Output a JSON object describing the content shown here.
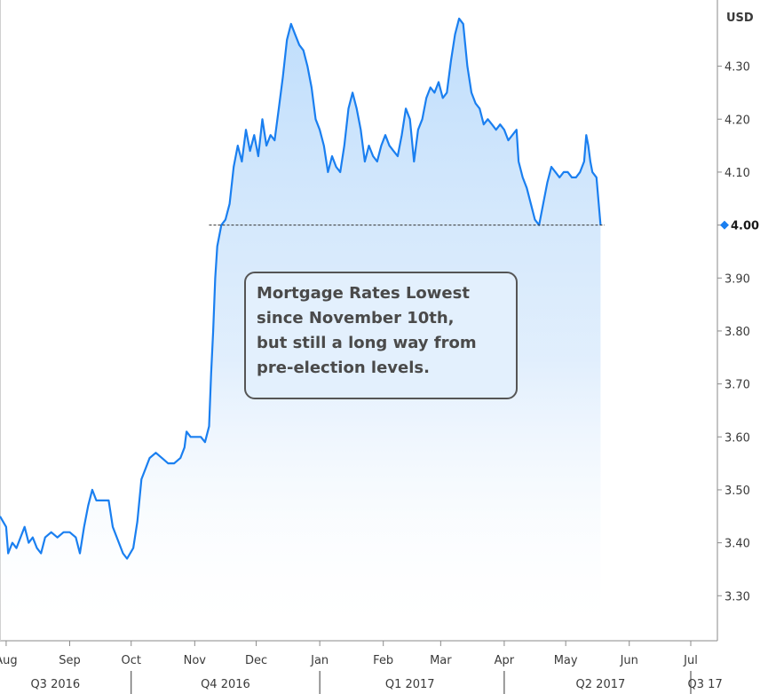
{
  "chart_data": {
    "type": "area",
    "unit": "USD",
    "yticks": [
      3.3,
      3.4,
      3.5,
      3.6,
      3.7,
      3.8,
      3.9,
      4.0,
      4.1,
      4.2,
      4.3
    ],
    "ytick_labels": [
      "3.30",
      "3.40",
      "3.50",
      "3.60",
      "3.70",
      "3.80",
      "3.90",
      "4.00",
      "4.10",
      "4.20",
      "4.30"
    ],
    "ylim": [
      3.215,
      4.425
    ],
    "xlim": [
      "2016-07-29",
      "2017-07-14"
    ],
    "month_ticks": [
      {
        "date": "2016-08-01",
        "label": "Aug"
      },
      {
        "date": "2016-09-01",
        "label": "Sep"
      },
      {
        "date": "2016-10-01",
        "label": "Oct"
      },
      {
        "date": "2016-11-01",
        "label": "Nov"
      },
      {
        "date": "2016-12-01",
        "label": "Dec"
      },
      {
        "date": "2017-01-01",
        "label": "Jan"
      },
      {
        "date": "2017-02-01",
        "label": "Feb"
      },
      {
        "date": "2017-03-01",
        "label": "Mar"
      },
      {
        "date": "2017-04-01",
        "label": "Apr"
      },
      {
        "date": "2017-05-01",
        "label": "May"
      },
      {
        "date": "2017-06-01",
        "label": "Jun"
      },
      {
        "date": "2017-07-01",
        "label": "Jul"
      }
    ],
    "quarters": [
      {
        "label": "Q3 2016",
        "label_date": "2016-08-25",
        "separator_date": "2016-10-01"
      },
      {
        "label": "Q4 2016",
        "label_date": "2016-11-16",
        "separator_date": "2017-01-01"
      },
      {
        "label": "Q1 2017",
        "label_date": "2017-02-14",
        "separator_date": "2017-04-01"
      },
      {
        "label": "Q2 2017",
        "label_date": "2017-05-18",
        "separator_date": "2017-07-01"
      },
      {
        "label": "Q3 17",
        "label_date": "2017-07-08",
        "separator_date": null
      }
    ],
    "reference_line": {
      "y": 4.0,
      "start": "2016-11-08",
      "end": "2017-05-20",
      "style": "dashed"
    },
    "last_value": {
      "value": 4.0,
      "label": "4.00",
      "date": "2017-05-18"
    },
    "grid": false,
    "line_color": "#1a7ff0",
    "fill_color": "#bcdcfb",
    "annotation": {
      "lines": [
        "Mortgage Rates Lowest",
        "since November 10th,",
        "but still a long way from",
        "pre-election levels."
      ]
    },
    "series": [
      {
        "points": [
          [
            "2016-07-29",
            3.45
          ],
          [
            "2016-08-01",
            3.43
          ],
          [
            "2016-08-02",
            3.38
          ],
          [
            "2016-08-04",
            3.4
          ],
          [
            "2016-08-06",
            3.39
          ],
          [
            "2016-08-08",
            3.41
          ],
          [
            "2016-08-10",
            3.43
          ],
          [
            "2016-08-12",
            3.4
          ],
          [
            "2016-08-14",
            3.41
          ],
          [
            "2016-08-16",
            3.39
          ],
          [
            "2016-08-18",
            3.38
          ],
          [
            "2016-08-20",
            3.41
          ],
          [
            "2016-08-23",
            3.42
          ],
          [
            "2016-08-26",
            3.41
          ],
          [
            "2016-08-29",
            3.42
          ],
          [
            "2016-09-01",
            3.42
          ],
          [
            "2016-09-04",
            3.41
          ],
          [
            "2016-09-06",
            3.38
          ],
          [
            "2016-09-08",
            3.43
          ],
          [
            "2016-09-10",
            3.47
          ],
          [
            "2016-09-12",
            3.5
          ],
          [
            "2016-09-14",
            3.48
          ],
          [
            "2016-09-17",
            3.48
          ],
          [
            "2016-09-20",
            3.48
          ],
          [
            "2016-09-22",
            3.43
          ],
          [
            "2016-09-24",
            3.41
          ],
          [
            "2016-09-27",
            3.38
          ],
          [
            "2016-09-29",
            3.37
          ],
          [
            "2016-10-02",
            3.39
          ],
          [
            "2016-10-04",
            3.44
          ],
          [
            "2016-10-06",
            3.52
          ],
          [
            "2016-10-08",
            3.54
          ],
          [
            "2016-10-10",
            3.56
          ],
          [
            "2016-10-13",
            3.57
          ],
          [
            "2016-10-16",
            3.56
          ],
          [
            "2016-10-19",
            3.55
          ],
          [
            "2016-10-22",
            3.55
          ],
          [
            "2016-10-25",
            3.56
          ],
          [
            "2016-10-27",
            3.58
          ],
          [
            "2016-10-28",
            3.61
          ],
          [
            "2016-10-30",
            3.6
          ],
          [
            "2016-11-02",
            3.6
          ],
          [
            "2016-11-04",
            3.6
          ],
          [
            "2016-11-06",
            3.59
          ],
          [
            "2016-11-08",
            3.62
          ],
          [
            "2016-11-09",
            3.72
          ],
          [
            "2016-11-10",
            3.8
          ],
          [
            "2016-11-11",
            3.9
          ],
          [
            "2016-11-12",
            3.96
          ],
          [
            "2016-11-14",
            4.0
          ],
          [
            "2016-11-16",
            4.01
          ],
          [
            "2016-11-18",
            4.04
          ],
          [
            "2016-11-20",
            4.11
          ],
          [
            "2016-11-22",
            4.15
          ],
          [
            "2016-11-24",
            4.12
          ],
          [
            "2016-11-26",
            4.18
          ],
          [
            "2016-11-28",
            4.14
          ],
          [
            "2016-11-30",
            4.17
          ],
          [
            "2016-12-02",
            4.13
          ],
          [
            "2016-12-04",
            4.2
          ],
          [
            "2016-12-06",
            4.15
          ],
          [
            "2016-12-08",
            4.17
          ],
          [
            "2016-12-10",
            4.16
          ],
          [
            "2016-12-12",
            4.22
          ],
          [
            "2016-12-14",
            4.28
          ],
          [
            "2016-12-16",
            4.35
          ],
          [
            "2016-12-18",
            4.38
          ],
          [
            "2016-12-20",
            4.36
          ],
          [
            "2016-12-22",
            4.34
          ],
          [
            "2016-12-24",
            4.33
          ],
          [
            "2016-12-26",
            4.3
          ],
          [
            "2016-12-28",
            4.26
          ],
          [
            "2016-12-30",
            4.2
          ],
          [
            "2017-01-01",
            4.18
          ],
          [
            "2017-01-03",
            4.15
          ],
          [
            "2017-01-05",
            4.1
          ],
          [
            "2017-01-07",
            4.13
          ],
          [
            "2017-01-09",
            4.11
          ],
          [
            "2017-01-11",
            4.1
          ],
          [
            "2017-01-13",
            4.15
          ],
          [
            "2017-01-15",
            4.22
          ],
          [
            "2017-01-17",
            4.25
          ],
          [
            "2017-01-19",
            4.22
          ],
          [
            "2017-01-21",
            4.18
          ],
          [
            "2017-01-23",
            4.12
          ],
          [
            "2017-01-25",
            4.15
          ],
          [
            "2017-01-27",
            4.13
          ],
          [
            "2017-01-29",
            4.12
          ],
          [
            "2017-01-31",
            4.15
          ],
          [
            "2017-02-02",
            4.17
          ],
          [
            "2017-02-04",
            4.15
          ],
          [
            "2017-02-06",
            4.14
          ],
          [
            "2017-02-08",
            4.13
          ],
          [
            "2017-02-10",
            4.17
          ],
          [
            "2017-02-12",
            4.22
          ],
          [
            "2017-02-14",
            4.2
          ],
          [
            "2017-02-16",
            4.12
          ],
          [
            "2017-02-18",
            4.18
          ],
          [
            "2017-02-20",
            4.2
          ],
          [
            "2017-02-22",
            4.24
          ],
          [
            "2017-02-24",
            4.26
          ],
          [
            "2017-02-26",
            4.25
          ],
          [
            "2017-02-28",
            4.27
          ],
          [
            "2017-03-02",
            4.24
          ],
          [
            "2017-03-04",
            4.25
          ],
          [
            "2017-03-06",
            4.31
          ],
          [
            "2017-03-08",
            4.36
          ],
          [
            "2017-03-10",
            4.39
          ],
          [
            "2017-03-12",
            4.38
          ],
          [
            "2017-03-14",
            4.3
          ],
          [
            "2017-03-16",
            4.25
          ],
          [
            "2017-03-18",
            4.23
          ],
          [
            "2017-03-20",
            4.22
          ],
          [
            "2017-03-22",
            4.19
          ],
          [
            "2017-03-24",
            4.2
          ],
          [
            "2017-03-26",
            4.19
          ],
          [
            "2017-03-28",
            4.18
          ],
          [
            "2017-03-30",
            4.19
          ],
          [
            "2017-04-01",
            4.18
          ],
          [
            "2017-04-03",
            4.16
          ],
          [
            "2017-04-05",
            4.17
          ],
          [
            "2017-04-07",
            4.18
          ],
          [
            "2017-04-08",
            4.12
          ],
          [
            "2017-04-10",
            4.09
          ],
          [
            "2017-04-12",
            4.07
          ],
          [
            "2017-04-14",
            4.04
          ],
          [
            "2017-04-16",
            4.01
          ],
          [
            "2017-04-18",
            4.0
          ],
          [
            "2017-04-20",
            4.04
          ],
          [
            "2017-04-22",
            4.08
          ],
          [
            "2017-04-24",
            4.11
          ],
          [
            "2017-04-26",
            4.1
          ],
          [
            "2017-04-28",
            4.09
          ],
          [
            "2017-04-30",
            4.1
          ],
          [
            "2017-05-02",
            4.1
          ],
          [
            "2017-05-04",
            4.09
          ],
          [
            "2017-05-06",
            4.09
          ],
          [
            "2017-05-08",
            4.1
          ],
          [
            "2017-05-10",
            4.12
          ],
          [
            "2017-05-11",
            4.17
          ],
          [
            "2017-05-12",
            4.15
          ],
          [
            "2017-05-13",
            4.12
          ],
          [
            "2017-05-14",
            4.1
          ],
          [
            "2017-05-16",
            4.09
          ],
          [
            "2017-05-18",
            4.0
          ]
        ]
      }
    ]
  }
}
